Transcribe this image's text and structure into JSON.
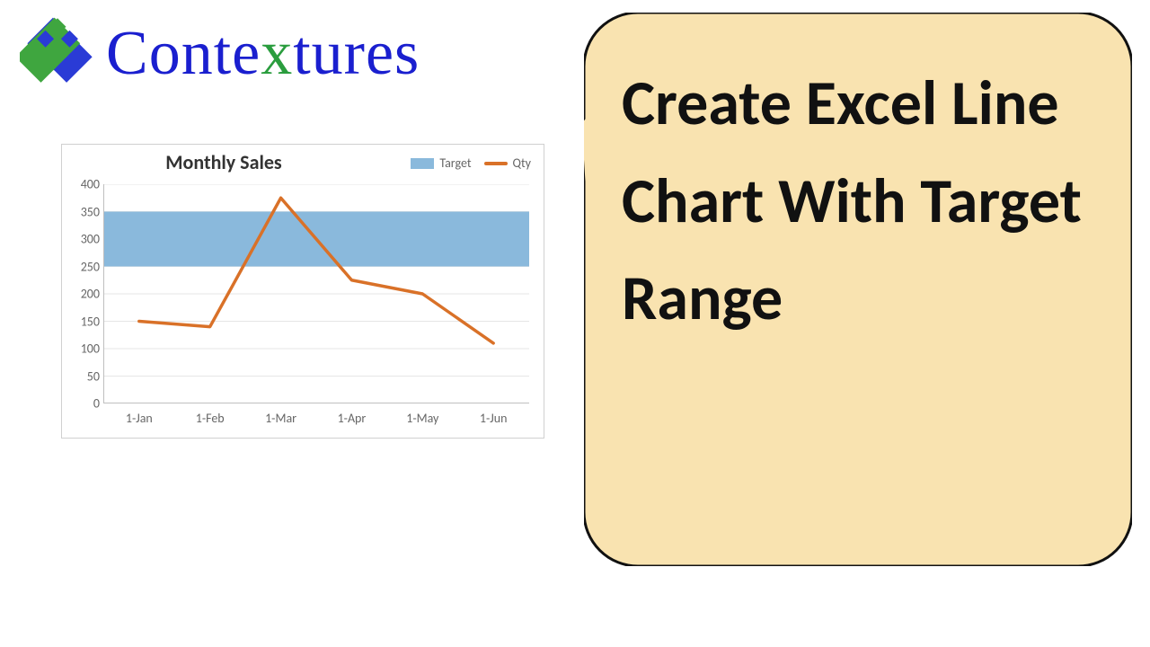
{
  "logo": {
    "text_pre": "Conte",
    "text_mid": "x",
    "text_post": "tures",
    "brand_blue": "#1a1fcf",
    "brand_green": "#2a9d3e",
    "mark_blue": "#2a3bd6",
    "mark_green": "#3fa63f"
  },
  "chart": {
    "type": "line-with-band",
    "title": "Monthly Sales",
    "title_fontsize": 22,
    "title_weight": 700,
    "border_color": "#d0d0d0",
    "background_color": "#ffffff",
    "grid_color": "#e6e6e6",
    "axis_text_color": "#666666",
    "label_fontsize": 14,
    "ylim": [
      0,
      400
    ],
    "ytick_step": 50,
    "yticks": [
      400,
      350,
      300,
      250,
      200,
      150,
      100,
      50,
      0
    ],
    "categories": [
      "1-Jan",
      "1-Feb",
      "1-Mar",
      "1-Apr",
      "1-May",
      "1-Jun"
    ],
    "target_band": {
      "low": 250,
      "high": 350,
      "color": "#8ab9dc",
      "opacity": 1.0
    },
    "line_series": {
      "name": "Qty",
      "color": "#d97128",
      "width": 3.5,
      "values": [
        150,
        140,
        375,
        225,
        200,
        110
      ]
    },
    "legend": {
      "items": [
        {
          "label": "Target",
          "kind": "band",
          "color": "#8ab9dc"
        },
        {
          "label": "Qty",
          "kind": "line",
          "color": "#d97128"
        }
      ]
    }
  },
  "callout": {
    "text": "Create Excel Line Chart With Target Range",
    "fill": "#f9e3b0",
    "stroke": "#111111",
    "stroke_width": 3,
    "corner_radius": 60,
    "text_color": "#111111",
    "text_fontsize": 70,
    "text_weight": 700
  }
}
